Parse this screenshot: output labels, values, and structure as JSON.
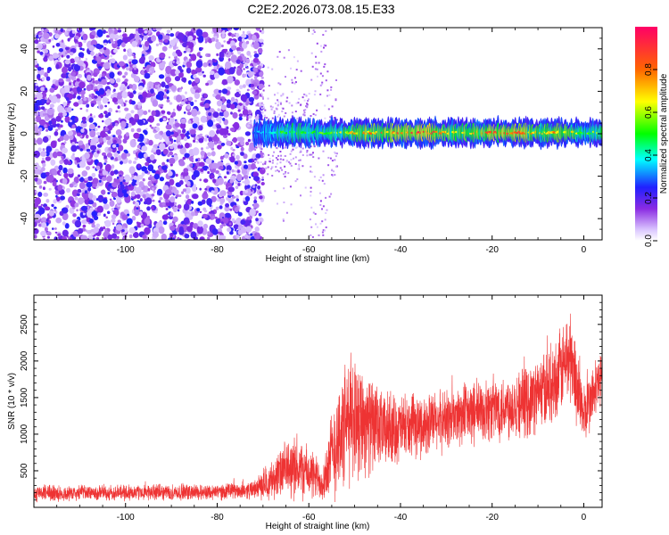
{
  "title": "C2E2.2026.073.08.15.E33",
  "chart_data": [
    {
      "type": "heatmap",
      "xlabel": "Height of straight line (km)",
      "ylabel": "Frequency (Hz)",
      "xlim": [
        -120,
        4
      ],
      "ylim": [
        -50,
        50
      ],
      "x_ticks": [
        -100,
        -80,
        -60,
        -40,
        -20,
        0
      ],
      "y_ticks": [
        -40,
        -20,
        0,
        20,
        40
      ],
      "colorbar": {
        "label": "Normalized spectral amplitude",
        "range": [
          0,
          1
        ],
        "ticks": [
          0.0,
          0.2,
          0.4,
          0.6,
          0.8
        ]
      },
      "regions": [
        {
          "x_range": [
            -120,
            -70
          ],
          "freq_range": [
            -50,
            50
          ],
          "amplitude_range": [
            0.05,
            0.25
          ],
          "description_kind": "broadband noise"
        },
        {
          "x_range": [
            -72,
            4
          ],
          "freq_center": 0.5,
          "freq_halfwidth": 3,
          "amplitude_range": [
            0.3,
            1.0
          ],
          "description_kind": "narrow line"
        }
      ],
      "line_amplitude_profile": [
        {
          "x": -70,
          "amp": 0.35
        },
        {
          "x": -65,
          "amp": 0.55
        },
        {
          "x": -58,
          "amp": 0.5
        },
        {
          "x": -54,
          "amp": 0.6
        },
        {
          "x": -48,
          "amp": 0.75
        },
        {
          "x": -40,
          "amp": 0.85
        },
        {
          "x": -34,
          "amp": 0.9
        },
        {
          "x": -28,
          "amp": 0.7
        },
        {
          "x": -22,
          "amp": 0.8
        },
        {
          "x": -16,
          "amp": 0.95
        },
        {
          "x": -10,
          "amp": 0.7
        },
        {
          "x": -4,
          "amp": 0.8
        },
        {
          "x": 0,
          "amp": 0.55
        },
        {
          "x": 4,
          "amp": 0.6
        }
      ]
    },
    {
      "type": "line",
      "xlabel": "Height of straight line (km)",
      "ylabel": "SNR (10 * v/v)",
      "xlim": [
        -120,
        4
      ],
      "ylim": [
        0,
        2900
      ],
      "x_ticks": [
        -100,
        -80,
        -60,
        -40,
        -20,
        0
      ],
      "y_ticks": [
        500,
        1000,
        1500,
        2000,
        2500
      ],
      "series": [
        {
          "color": "#ee3333",
          "envelope": [
            {
              "x": -120,
              "base": 190,
              "spread": 180
            },
            {
              "x": -100,
              "base": 200,
              "spread": 180
            },
            {
              "x": -80,
              "base": 210,
              "spread": 180
            },
            {
              "x": -72,
              "base": 240,
              "spread": 200
            },
            {
              "x": -68,
              "base": 380,
              "spread": 450
            },
            {
              "x": -64,
              "base": 550,
              "spread": 700
            },
            {
              "x": -61,
              "base": 500,
              "spread": 650
            },
            {
              "x": -57,
              "base": 350,
              "spread": 450
            },
            {
              "x": -54,
              "base": 900,
              "spread": 1300
            },
            {
              "x": -50,
              "base": 1300,
              "spread": 1500
            },
            {
              "x": -45,
              "base": 1050,
              "spread": 900
            },
            {
              "x": -38,
              "base": 1080,
              "spread": 700
            },
            {
              "x": -30,
              "base": 1200,
              "spread": 700
            },
            {
              "x": -20,
              "base": 1350,
              "spread": 750
            },
            {
              "x": -12,
              "base": 1450,
              "spread": 800
            },
            {
              "x": -6,
              "base": 1750,
              "spread": 900
            },
            {
              "x": -3,
              "base": 2100,
              "spread": 1100
            },
            {
              "x": 0,
              "base": 1250,
              "spread": 700
            },
            {
              "x": 4,
              "base": 1800,
              "spread": 700
            }
          ]
        }
      ]
    }
  ]
}
